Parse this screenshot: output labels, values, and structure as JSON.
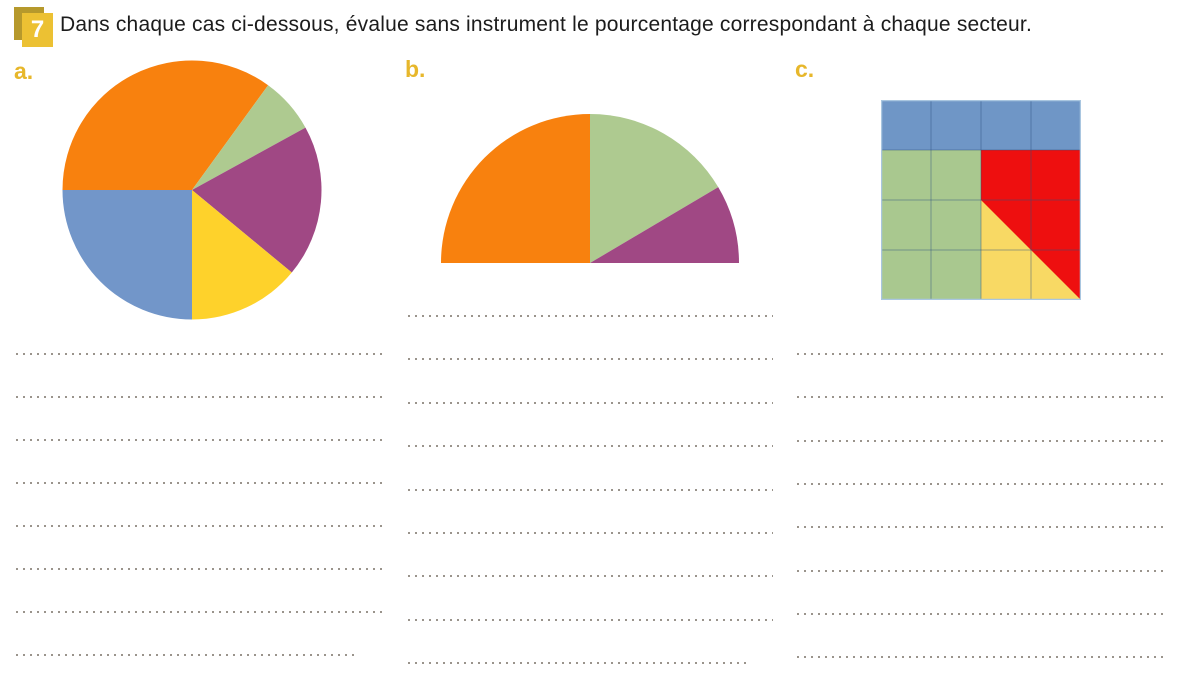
{
  "page": {
    "background": "#ffffff"
  },
  "header": {
    "badge_number": "7",
    "instruction": "Dans chaque cas ci-dessous, évalue sans instrument  le pourcentage correspondant à chaque secteur."
  },
  "colors": {
    "badge_front": "#ecc133",
    "badge_back": "#b6992c",
    "section_label": "#e7b72b",
    "title_text": "#1c1c1c",
    "dotted_line": "#9a948c"
  },
  "sections": [
    {
      "id": "a",
      "label": "a.",
      "answer_line_count": 8
    },
    {
      "id": "b",
      "label": "b.",
      "answer_line_count": 9
    },
    {
      "id": "c",
      "label": "c.",
      "answer_line_count": 8
    }
  ],
  "chart_data": [
    {
      "id": "a",
      "type": "pie",
      "shape": "full-circle",
      "description": "Disque partagé en 5 secteurs, à évaluer en pourcentages",
      "slices": [
        {
          "name": "orange",
          "color": "#f8810e",
          "percent_estimate": 35
        },
        {
          "name": "green",
          "color": "#aeca90",
          "percent_estimate": 7
        },
        {
          "name": "purple",
          "color": "#a04884",
          "percent_estimate": 19
        },
        {
          "name": "yellow",
          "color": "#fed22b",
          "percent_estimate": 14
        },
        {
          "name": "blue",
          "color": "#7296c9",
          "percent_estimate": 25
        }
      ]
    },
    {
      "id": "b",
      "type": "pie",
      "shape": "semicircle",
      "description": "Demi-disque partagé en 3 secteurs, à évaluer en pourcentages",
      "slices": [
        {
          "name": "orange",
          "color": "#f8810e",
          "percent_estimate": 50
        },
        {
          "name": "green",
          "color": "#aeca90",
          "percent_estimate": 33
        },
        {
          "name": "purple",
          "color": "#a04884",
          "percent_estimate": 17
        }
      ]
    },
    {
      "id": "c",
      "type": "grid",
      "rows": 4,
      "cols": 4,
      "description": "Carré 4×4 dont les cases colorées représentent des pourcentages",
      "colors": {
        "blue": "#6f96c6",
        "green": "#a9c88f",
        "red": "#ee0f0f",
        "yellow": "#f8d964",
        "gridline": "rgba(44,80,126,0.45)",
        "border": "#a9c6e0"
      },
      "cells": [
        [
          "blue",
          "blue",
          "blue",
          "blue"
        ],
        [
          "green",
          "green",
          "red",
          "red"
        ],
        [
          "green",
          "green",
          "yellow-red-diagonal",
          "red"
        ],
        [
          "green",
          "green",
          "yellow",
          "yellow-red-diagonal"
        ]
      ],
      "shares_percent": {
        "blue": 25,
        "green": 37.5,
        "red": 25,
        "yellow": 12.5
      }
    }
  ]
}
